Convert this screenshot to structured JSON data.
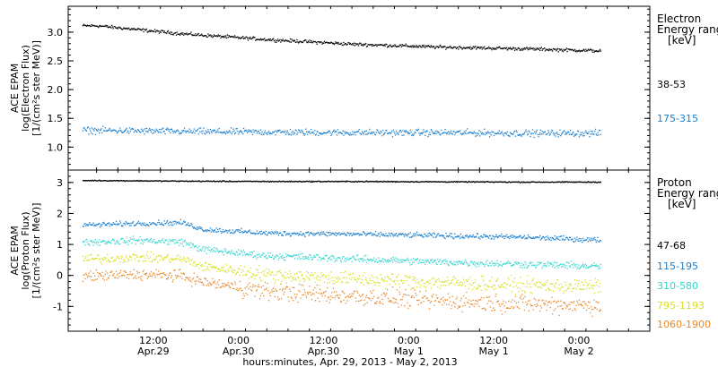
{
  "chart_data": [
    {
      "type": "scatter",
      "panel": "electron",
      "ylabel_lines": [
        "ACE EPAM",
        "log(Electron Flux)",
        "[1/(cm²s ster MeV)]"
      ],
      "ylim": [
        0.6,
        3.45
      ],
      "yticks": [
        1.0,
        1.5,
        2.0,
        2.5,
        3.0
      ],
      "ytick_labels": [
        "1.0",
        "1.5",
        "2.0",
        "2.5",
        "3.0"
      ],
      "legend_title": [
        "Electron",
        "Energy ranges",
        "[keV]"
      ],
      "series": [
        {
          "name": "38-53",
          "color": "#000000",
          "x": [
            0,
            12,
            24,
            36,
            48,
            60,
            72
          ],
          "y": [
            3.12,
            2.98,
            2.88,
            2.8,
            2.75,
            2.72,
            2.68
          ]
        },
        {
          "name": "175-315",
          "color": "#1a7fd0",
          "x": [
            0,
            12,
            24,
            36,
            48,
            60,
            72
          ],
          "y": [
            1.3,
            1.28,
            1.27,
            1.26,
            1.26,
            1.25,
            1.25
          ]
        }
      ]
    },
    {
      "type": "scatter",
      "panel": "proton",
      "ylabel_lines": [
        "ACE EPAM",
        "log(Proton Flux)",
        "[1/(cm²s ster MeV)]"
      ],
      "ylim": [
        -1.8,
        3.4
      ],
      "yticks": [
        -1,
        0,
        1,
        2,
        3
      ],
      "ytick_labels": [
        "-1",
        "0",
        "1",
        "2",
        "3"
      ],
      "legend_title": [
        "Proton",
        "Energy ranges",
        "[keV]"
      ],
      "series": [
        {
          "name": "47-68",
          "color": "#000000",
          "x": [
            0,
            12,
            24,
            36,
            48,
            60,
            72
          ],
          "y": [
            3.08,
            3.06,
            3.05,
            3.05,
            3.04,
            3.03,
            3.03
          ]
        },
        {
          "name": "115-195",
          "color": "#1a7fd0",
          "x": [
            0,
            6,
            12,
            15,
            24,
            36,
            48,
            60,
            72
          ],
          "y": [
            1.65,
            1.7,
            1.72,
            1.5,
            1.38,
            1.35,
            1.3,
            1.25,
            1.15
          ]
        },
        {
          "name": "310-580",
          "color": "#33d6cf",
          "x": [
            0,
            6,
            12,
            15,
            24,
            36,
            48,
            60,
            72
          ],
          "y": [
            1.1,
            1.15,
            1.1,
            0.85,
            0.65,
            0.55,
            0.45,
            0.38,
            0.3
          ]
        },
        {
          "name": "795-1193",
          "color": "#d8e020",
          "x": [
            0,
            6,
            12,
            15,
            24,
            36,
            48,
            60,
            72
          ],
          "y": [
            0.55,
            0.6,
            0.55,
            0.3,
            0.05,
            -0.1,
            -0.2,
            -0.3,
            -0.35
          ]
        },
        {
          "name": "1060-1900",
          "color": "#e8892a",
          "x": [
            0,
            6,
            12,
            15,
            24,
            36,
            48,
            60,
            72
          ],
          "y": [
            0.0,
            0.05,
            0.0,
            -0.2,
            -0.5,
            -0.65,
            -0.8,
            -0.9,
            -0.95
          ]
        }
      ]
    }
  ],
  "x_axis": {
    "xlim": [
      -4,
      78
    ],
    "ticks": [
      {
        "x": 8,
        "top": "12:00",
        "bottom": "Apr.29"
      },
      {
        "x": 20,
        "top": "0:00",
        "bottom": "Apr.30"
      },
      {
        "x": 32,
        "top": "12:00",
        "bottom": "Apr.30"
      },
      {
        "x": 44,
        "top": "0:00",
        "bottom": "May 1"
      },
      {
        "x": 56,
        "top": "12:00",
        "bottom": "May 1"
      },
      {
        "x": 68,
        "top": "0:00",
        "bottom": "May 2"
      }
    ],
    "label": "hours:minutes, Apr. 29, 2013 - May  2, 2013"
  }
}
